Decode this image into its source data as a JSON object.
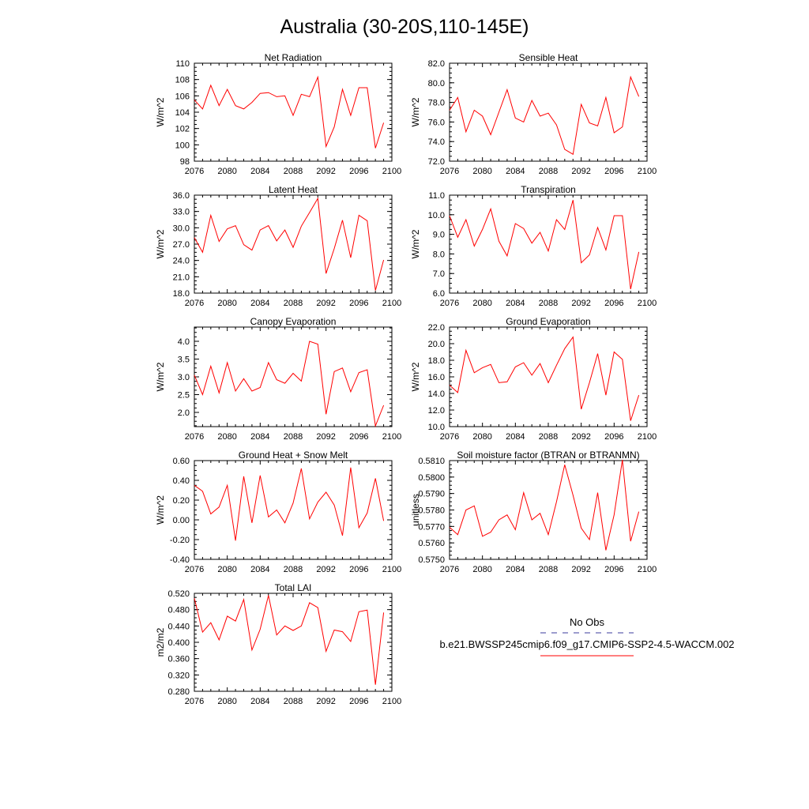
{
  "page_title": "Australia (30-20S,110-145E)",
  "legend": {
    "obs_label": "No Obs",
    "model_label": "b.e21.BWSSP245cmip6.f09_g17.CMIP6-SSP2-4.5-WACCM.002",
    "obs_color": "#3b3b9e",
    "model_color": "#ff0000"
  },
  "chart_data": [
    {
      "type": "line",
      "title": "Net Radiation",
      "ylabel": "W/m^2",
      "xlim": [
        2076,
        2100
      ],
      "ylim": [
        98,
        110
      ],
      "xticks": [
        "2076",
        "2080",
        "2084",
        "2088",
        "2092",
        "2096",
        "2100"
      ],
      "yticks": [
        "98",
        "100",
        "102",
        "104",
        "106",
        "108",
        "110"
      ],
      "x": [
        2076,
        2077,
        2078,
        2079,
        2080,
        2081,
        2082,
        2083,
        2084,
        2085,
        2086,
        2087,
        2088,
        2089,
        2090,
        2091,
        2092,
        2093,
        2094,
        2095,
        2096,
        2097,
        2098,
        2099
      ],
      "series": [
        {
          "values": [
            105.5,
            104.4,
            107.3,
            104.8,
            106.8,
            104.8,
            104.4,
            105.2,
            106.3,
            106.4,
            105.9,
            106.0,
            103.6,
            106.2,
            105.9,
            108.3,
            99.8,
            102.2,
            106.8,
            103.6,
            107.0,
            107.0,
            99.6,
            102.7
          ]
        }
      ]
    },
    {
      "type": "line",
      "title": "Sensible Heat",
      "ylabel": "W/m^2",
      "xlim": [
        2076,
        2100
      ],
      "ylim": [
        72.0,
        82.0
      ],
      "xticks": [
        "2076",
        "2080",
        "2084",
        "2088",
        "2092",
        "2096",
        "2100"
      ],
      "yticks": [
        "72.0",
        "74.0",
        "76.0",
        "78.0",
        "80.0",
        "82.0"
      ],
      "x": [
        2076,
        2077,
        2078,
        2079,
        2080,
        2081,
        2082,
        2083,
        2084,
        2085,
        2086,
        2087,
        2088,
        2089,
        2090,
        2091,
        2092,
        2093,
        2094,
        2095,
        2096,
        2097,
        2098,
        2099
      ],
      "series": [
        {
          "values": [
            77.2,
            78.5,
            75.0,
            77.2,
            76.6,
            74.7,
            77.0,
            79.3,
            76.4,
            76.0,
            78.2,
            76.6,
            76.9,
            75.7,
            73.2,
            72.7,
            77.8,
            75.9,
            75.6,
            78.5,
            74.9,
            75.5,
            80.6,
            78.6
          ]
        }
      ]
    },
    {
      "type": "line",
      "title": "Latent Heat",
      "ylabel": "W/m^2",
      "xlim": [
        2076,
        2100
      ],
      "ylim": [
        18.0,
        36.0
      ],
      "xticks": [
        "2076",
        "2080",
        "2084",
        "2088",
        "2092",
        "2096",
        "2100"
      ],
      "yticks": [
        "18.0",
        "21.0",
        "24.0",
        "27.0",
        "30.0",
        "33.0",
        "36.0"
      ],
      "x": [
        2076,
        2077,
        2078,
        2079,
        2080,
        2081,
        2082,
        2083,
        2084,
        2085,
        2086,
        2087,
        2088,
        2089,
        2090,
        2091,
        2092,
        2093,
        2094,
        2095,
        2096,
        2097,
        2098,
        2099
      ],
      "series": [
        {
          "values": [
            28.2,
            25.5,
            32.3,
            27.5,
            29.8,
            30.4,
            26.9,
            25.9,
            29.6,
            30.4,
            27.6,
            29.6,
            26.4,
            30.3,
            32.8,
            35.4,
            21.6,
            26.2,
            31.4,
            24.5,
            32.3,
            31.3,
            18.5,
            24.1
          ]
        }
      ]
    },
    {
      "type": "line",
      "title": "Transpiration",
      "ylabel": "W/m^2",
      "xlim": [
        2076,
        2100
      ],
      "ylim": [
        6.0,
        11.0
      ],
      "xticks": [
        "2076",
        "2080",
        "2084",
        "2088",
        "2092",
        "2096",
        "2100"
      ],
      "yticks": [
        "6.0",
        "7.0",
        "8.0",
        "9.0",
        "10.0",
        "11.0"
      ],
      "x": [
        2076,
        2077,
        2078,
        2079,
        2080,
        2081,
        2082,
        2083,
        2084,
        2085,
        2086,
        2087,
        2088,
        2089,
        2090,
        2091,
        2092,
        2093,
        2094,
        2095,
        2096,
        2097,
        2098,
        2099
      ],
      "series": [
        {
          "values": [
            9.95,
            8.85,
            9.75,
            8.4,
            9.25,
            10.3,
            8.65,
            7.9,
            9.55,
            9.3,
            8.55,
            9.1,
            8.15,
            9.75,
            9.25,
            10.75,
            7.55,
            7.95,
            9.35,
            8.2,
            9.95,
            9.95,
            6.2,
            8.1
          ]
        }
      ]
    },
    {
      "type": "line",
      "title": "Canopy Evaporation",
      "ylabel": "W/m^2",
      "xlim": [
        2076,
        2100
      ],
      "ylim": [
        1.6,
        4.4
      ],
      "xticks": [
        "2076",
        "2080",
        "2084",
        "2088",
        "2092",
        "2096",
        "2100"
      ],
      "yticks": [
        "2.0",
        "2.5",
        "3.0",
        "3.5",
        "4.0"
      ],
      "x": [
        2076,
        2077,
        2078,
        2079,
        2080,
        2081,
        2082,
        2083,
        2084,
        2085,
        2086,
        2087,
        2088,
        2089,
        2090,
        2091,
        2092,
        2093,
        2094,
        2095,
        2096,
        2097,
        2098,
        2099
      ],
      "series": [
        {
          "values": [
            3.05,
            2.5,
            3.3,
            2.55,
            3.4,
            2.6,
            2.95,
            2.6,
            2.7,
            3.4,
            2.92,
            2.82,
            3.1,
            2.88,
            4.0,
            3.92,
            1.95,
            3.15,
            3.25,
            2.58,
            3.12,
            3.2,
            1.62,
            2.2
          ]
        }
      ]
    },
    {
      "type": "line",
      "title": "Ground Evaporation",
      "ylabel": "W/m^2",
      "xlim": [
        2076,
        2100
      ],
      "ylim": [
        10.0,
        22.0
      ],
      "xticks": [
        "2076",
        "2080",
        "2084",
        "2088",
        "2092",
        "2096",
        "2100"
      ],
      "yticks": [
        "10.0",
        "12.0",
        "14.0",
        "16.0",
        "18.0",
        "20.0",
        "22.0"
      ],
      "x": [
        2076,
        2077,
        2078,
        2079,
        2080,
        2081,
        2082,
        2083,
        2084,
        2085,
        2086,
        2087,
        2088,
        2089,
        2090,
        2091,
        2092,
        2093,
        2094,
        2095,
        2096,
        2097,
        2098,
        2099
      ],
      "series": [
        {
          "values": [
            15.0,
            14.1,
            19.2,
            16.5,
            17.1,
            17.5,
            15.3,
            15.4,
            17.2,
            17.7,
            16.2,
            17.6,
            15.3,
            17.4,
            19.4,
            20.8,
            12.1,
            15.3,
            18.8,
            13.8,
            19.0,
            18.1,
            10.7,
            13.8
          ]
        }
      ]
    },
    {
      "type": "line",
      "title": "Ground Heat + Snow Melt",
      "ylabel": "W/m^2",
      "xlim": [
        2076,
        2100
      ],
      "ylim": [
        -0.4,
        0.6
      ],
      "xticks": [
        "2076",
        "2080",
        "2084",
        "2088",
        "2092",
        "2096",
        "2100"
      ],
      "yticks": [
        "-0.40",
        "-0.20",
        "0.00",
        "0.20",
        "0.40",
        "0.60"
      ],
      "x": [
        2076,
        2077,
        2078,
        2079,
        2080,
        2081,
        2082,
        2083,
        2084,
        2085,
        2086,
        2087,
        2088,
        2089,
        2090,
        2091,
        2092,
        2093,
        2094,
        2095,
        2096,
        2097,
        2098,
        2099
      ],
      "series": [
        {
          "values": [
            0.35,
            0.29,
            0.06,
            0.13,
            0.35,
            -0.21,
            0.44,
            -0.03,
            0.45,
            0.03,
            0.1,
            -0.03,
            0.17,
            0.52,
            0.01,
            0.18,
            0.28,
            0.15,
            -0.16,
            0.53,
            -0.08,
            0.07,
            0.42,
            -0.01
          ]
        }
      ]
    },
    {
      "type": "line",
      "title": "Soil moisture factor (BTRAN or BTRANMN)",
      "ylabel": "unitless",
      "xlim": [
        2076,
        2100
      ],
      "ylim": [
        0.575,
        0.581
      ],
      "xticks": [
        "2076",
        "2080",
        "2084",
        "2088",
        "2092",
        "2096",
        "2100"
      ],
      "yticks": [
        "0.5750",
        "0.5760",
        "0.5770",
        "0.5780",
        "0.5790",
        "0.5800",
        "0.5810"
      ],
      "x": [
        2076,
        2077,
        2078,
        2079,
        2080,
        2081,
        2082,
        2083,
        2084,
        2085,
        2086,
        2087,
        2088,
        2089,
        2090,
        2091,
        2092,
        2093,
        2094,
        2095,
        2096,
        2097,
        2098,
        2099
      ],
      "series": [
        {
          "values": [
            0.57695,
            0.5765,
            0.578,
            0.57825,
            0.5764,
            0.57665,
            0.5774,
            0.5777,
            0.5768,
            0.57905,
            0.5774,
            0.5778,
            0.5765,
            0.5785,
            0.58075,
            0.5789,
            0.5769,
            0.5762,
            0.57905,
            0.57555,
            0.5777,
            0.58105,
            0.5761,
            0.5779
          ]
        }
      ]
    },
    {
      "type": "line",
      "title": "Total LAI",
      "ylabel": "m2/m2",
      "xlim": [
        2076,
        2100
      ],
      "ylim": [
        0.28,
        0.52
      ],
      "xticks": [
        "2076",
        "2080",
        "2084",
        "2088",
        "2092",
        "2096",
        "2100"
      ],
      "yticks": [
        "0.280",
        "0.320",
        "0.360",
        "0.400",
        "0.440",
        "0.480",
        "0.520"
      ],
      "x": [
        2076,
        2077,
        2078,
        2079,
        2080,
        2081,
        2082,
        2083,
        2084,
        2085,
        2086,
        2087,
        2088,
        2089,
        2090,
        2091,
        2092,
        2093,
        2094,
        2095,
        2096,
        2097,
        2098,
        2099
      ],
      "series": [
        {
          "values": [
            0.508,
            0.425,
            0.448,
            0.406,
            0.464,
            0.452,
            0.505,
            0.381,
            0.432,
            0.515,
            0.418,
            0.44,
            0.429,
            0.44,
            0.497,
            0.485,
            0.378,
            0.43,
            0.426,
            0.402,
            0.475,
            0.479,
            0.296,
            0.473
          ]
        }
      ]
    }
  ]
}
